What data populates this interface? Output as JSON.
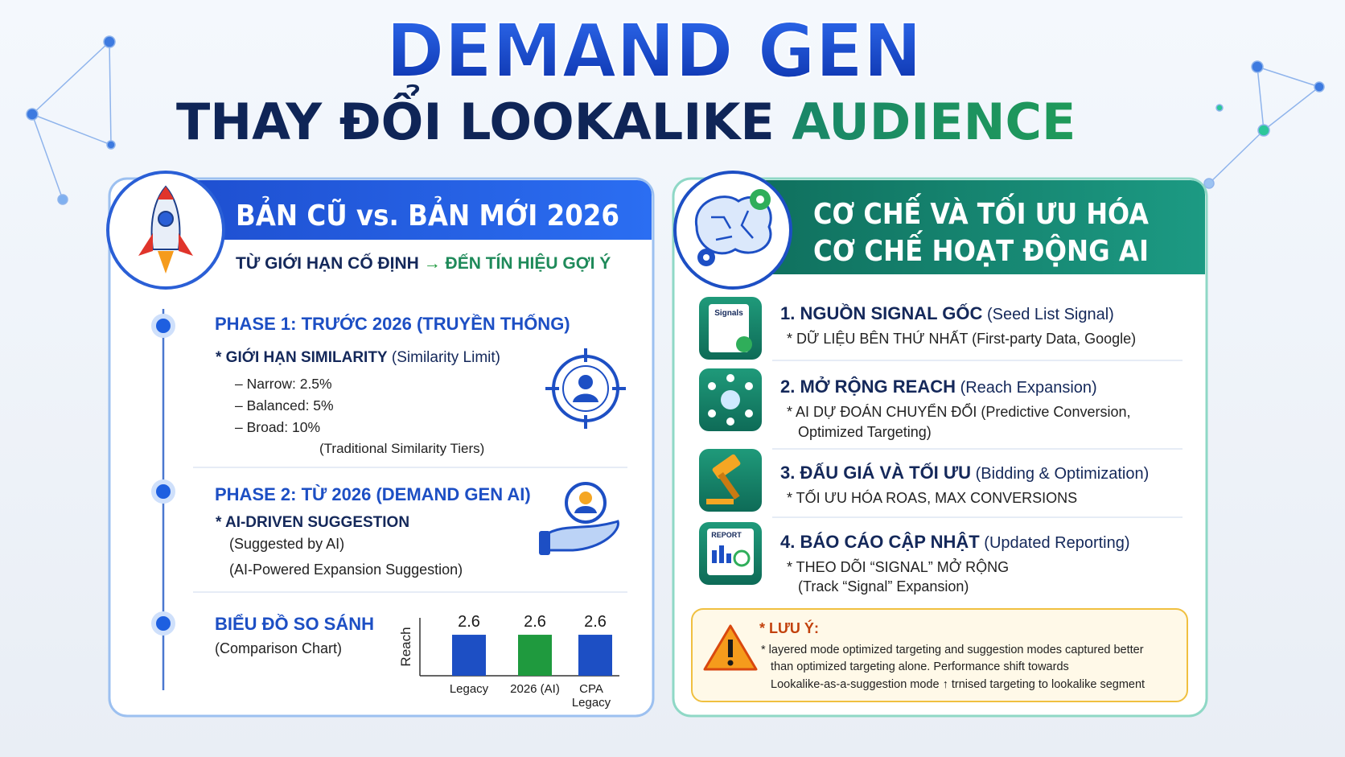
{
  "header": {
    "title": "DEMAND GEN",
    "subtitle": "THAY ĐỔI LOOKALIKE",
    "subtitle_accent": "AUDIENCE"
  },
  "left_panel": {
    "title": "BẢN CŨ vs. BẢN MỚI 2026",
    "subtitle_from": "TỪ GIỚI HẠN CỐ ĐỊNH",
    "subtitle_arrow": "→",
    "subtitle_to": "ĐẾN TÍN HIỆU GỢI Ý",
    "phases": [
      {
        "title": "PHASE 1: TRƯỚC 2026 (TRUYỀN THỐNG)",
        "bullet": "* GIỚI HẠN SIMILARITY",
        "bullet_note": "(Similarity Limit)",
        "items": [
          "– Narrow: 2.5%",
          "– Balanced: 5%",
          "– Broad: 10%"
        ],
        "note": "(Traditional Similarity Tiers)"
      },
      {
        "title": "PHASE 2: TỪ 2026 (DEMAND GEN AI)",
        "bullet": "* AI-DRIVEN SUGGESTION",
        "lines": [
          "(Suggested by AI)",
          "(AI-Powered Expansion Suggestion)"
        ]
      },
      {
        "title": "BIỂU ĐỒ SO SÁNH",
        "lines": [
          "(Comparison Chart)"
        ]
      }
    ],
    "chart": {
      "type": "bar",
      "ylabel": "Reach",
      "categories": [
        "Legacy",
        "2026 (AI)",
        "CPA Legacy"
      ],
      "values": [
        2.6,
        2.6,
        2.6
      ],
      "colors": [
        "#1d4fc4",
        "#1f9a3e",
        "#1d4fc4"
      ]
    }
  },
  "right_panel": {
    "title_lines": [
      "CƠ CHẾ VÀ TỐI ƯU HÓA",
      "CƠ CHẾ HOẠT ĐỘNG AI"
    ],
    "steps": [
      {
        "icon_label": "Signals",
        "title": "1. NGUỒN SIGNAL GỐC",
        "title_en": "(Seed List Signal)",
        "lines": [
          "* DỮ LIỆU BÊN THỨ NHẤT (First-party Data, Google)"
        ]
      },
      {
        "title": "2. MỞ RỘNG REACH",
        "title_en": "(Reach Expansion)",
        "lines": [
          "* AI DỰ ĐOÁN CHUYỂN ĐỔI (Predictive Conversion,",
          "Optimized Targeting)"
        ]
      },
      {
        "title": "3. ĐẤU GIÁ VÀ TỐI ƯU",
        "title_en": "(Bidding & Optimization)",
        "lines": [
          "* TỐI ƯU HÓA ROAS, MAX CONVERSIONS"
        ]
      },
      {
        "icon_label": "REPORT",
        "title": "4. BÁO CÁO CẬP NHẬT",
        "title_en": "(Updated Reporting)",
        "lines": [
          "* THEO DÕI “SIGNAL” MỞ RỘNG",
          "(Track “Signal” Expansion)"
        ]
      }
    ],
    "note": {
      "title": "* LƯU Ý:",
      "lines": [
        "* layered mode optimized targeting and suggestion modes captured better",
        "than optimized targeting alone. Performance shift towards",
        "Lookalike-as-a-suggestion mode ↑ trnised targeting to lookalike segment"
      ]
    }
  }
}
